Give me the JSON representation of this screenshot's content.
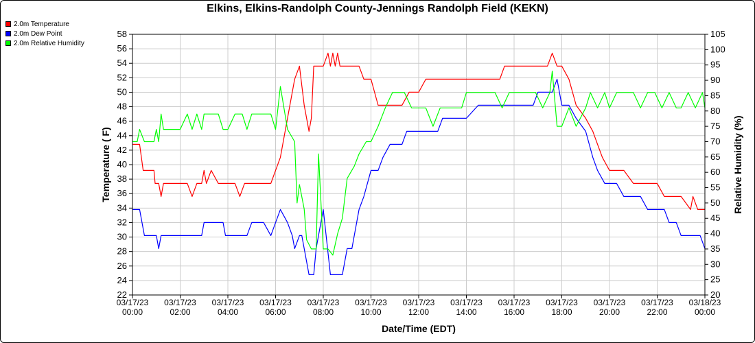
{
  "chart_data": {
    "type": "line",
    "title": "Elkins, Elkins-Randolph County-Jennings Randolph Field (KEKN)",
    "xlabel": "Date/Time (EDT)",
    "ylabel_left": "Temperature ( F)",
    "ylabel_right": "Relative Humidity (%)",
    "ylim_left": [
      22,
      58
    ],
    "ylim_right": [
      20,
      105
    ],
    "xlim_hours": [
      0,
      24
    ],
    "grid": true,
    "legend_position": "top-left",
    "yticks_left": [
      22,
      24,
      26,
      28,
      30,
      32,
      34,
      36,
      38,
      40,
      42,
      44,
      46,
      48,
      50,
      52,
      54,
      56,
      58
    ],
    "yticks_right": [
      20,
      25,
      30,
      35,
      40,
      45,
      50,
      55,
      60,
      65,
      70,
      75,
      80,
      85,
      90,
      95,
      100,
      105
    ],
    "xticks": [
      {
        "date": "03/17/23",
        "time": "00:00"
      },
      {
        "date": "03/17/23",
        "time": "02:00"
      },
      {
        "date": "03/17/23",
        "time": "04:00"
      },
      {
        "date": "03/17/23",
        "time": "06:00"
      },
      {
        "date": "03/17/23",
        "time": "08:00"
      },
      {
        "date": "03/17/23",
        "time": "10:00"
      },
      {
        "date": "03/17/23",
        "time": "12:00"
      },
      {
        "date": "03/17/23",
        "time": "14:00"
      },
      {
        "date": "03/17/23",
        "time": "16:00"
      },
      {
        "date": "03/17/23",
        "time": "18:00"
      },
      {
        "date": "03/17/23",
        "time": "20:00"
      },
      {
        "date": "03/17/23",
        "time": "22:00"
      },
      {
        "date": "03/18/23",
        "time": "00:00"
      }
    ],
    "series": [
      {
        "name": "2.0m Temperature",
        "color": "#ff0000",
        "axis": "left",
        "hours": [
          0,
          0.3,
          0.45,
          0.9,
          0.95,
          1.1,
          1.2,
          1.3,
          1.5,
          1.6,
          1.8,
          2.0,
          2.2,
          2.3,
          2.5,
          2.7,
          2.8,
          2.9,
          3.0,
          3.1,
          3.3,
          3.6,
          3.7,
          4.0,
          4.3,
          4.5,
          4.7,
          4.8,
          5.0,
          5.2,
          5.5,
          5.8,
          6.0,
          6.2,
          6.4,
          6.5,
          6.8,
          7.0,
          7.2,
          7.4,
          7.5,
          7.6,
          7.7,
          8.0,
          8.2,
          8.3,
          8.4,
          8.5,
          8.6,
          8.7,
          9.0,
          9.3,
          9.5,
          9.7,
          10.0,
          10.3,
          10.5,
          10.8,
          11.0,
          11.3,
          11.6,
          12.0,
          12.3,
          12.6,
          13.0,
          13.5,
          14.0,
          14.5,
          15.0,
          15.4,
          15.6,
          15.8,
          16.0,
          16.4,
          16.6,
          16.8,
          17.0,
          17.2,
          17.4,
          17.6,
          17.8,
          18.0,
          18.3,
          18.6,
          19.0,
          19.3,
          19.5,
          19.7,
          20.0,
          20.3,
          20.6,
          21.0,
          21.5,
          22.0,
          22.3,
          22.6,
          22.8,
          23.0,
          23.4,
          23.5,
          23.7,
          24.0
        ],
        "values": [
          42.8,
          42.8,
          39.2,
          39.2,
          37.4,
          37.4,
          35.6,
          37.4,
          37.4,
          37.4,
          37.4,
          37.4,
          37.4,
          37.4,
          35.6,
          37.4,
          37.4,
          37.4,
          39.2,
          37.4,
          39.2,
          37.4,
          37.4,
          37.4,
          37.4,
          35.6,
          37.4,
          37.4,
          37.4,
          37.4,
          37.4,
          37.4,
          39.2,
          41.0,
          44.6,
          46.4,
          51.8,
          53.6,
          48.2,
          44.6,
          46.4,
          53.6,
          53.6,
          53.6,
          55.4,
          53.6,
          55.4,
          53.6,
          55.4,
          53.6,
          53.6,
          53.6,
          53.6,
          51.8,
          51.8,
          48.2,
          48.2,
          48.2,
          48.2,
          48.2,
          50.0,
          50.0,
          51.8,
          51.8,
          51.8,
          51.8,
          51.8,
          51.8,
          51.8,
          51.8,
          53.6,
          53.6,
          53.6,
          53.6,
          53.6,
          53.6,
          53.6,
          53.6,
          53.6,
          55.4,
          53.6,
          53.6,
          51.8,
          48.2,
          46.4,
          44.6,
          42.8,
          41.0,
          39.2,
          39.2,
          39.2,
          37.4,
          37.4,
          37.4,
          35.6,
          35.6,
          35.6,
          35.6,
          33.8,
          35.6,
          33.8,
          33.8
        ]
      },
      {
        "name": "2.0m Dew Point",
        "color": "#0000ff",
        "axis": "left",
        "hours": [
          0,
          0.3,
          0.5,
          0.9,
          1.0,
          1.1,
          1.2,
          1.3,
          1.5,
          1.8,
          2.0,
          2.3,
          2.7,
          2.9,
          3.0,
          3.3,
          3.6,
          3.8,
          3.9,
          4.0,
          4.3,
          4.6,
          4.8,
          5.0,
          5.2,
          5.5,
          5.8,
          6.0,
          6.2,
          6.5,
          6.7,
          6.8,
          7.0,
          7.1,
          7.3,
          7.4,
          7.5,
          7.6,
          7.7,
          8.0,
          8.3,
          8.5,
          8.8,
          9.0,
          9.2,
          9.5,
          9.7,
          10.0,
          10.3,
          10.5,
          10.8,
          11.0,
          11.3,
          11.5,
          11.8,
          12.0,
          12.5,
          12.8,
          13.0,
          13.5,
          14.0,
          14.5,
          15.0,
          15.5,
          16.0,
          16.3,
          16.6,
          16.8,
          17.0,
          17.3,
          17.5,
          17.6,
          17.8,
          18.0,
          18.3,
          18.6,
          19.0,
          19.3,
          19.5,
          19.8,
          20.0,
          20.3,
          20.6,
          21.0,
          21.3,
          21.6,
          22.0,
          22.3,
          22.5,
          22.8,
          23.0,
          23.3,
          23.6,
          23.8,
          24.0
        ],
        "values": [
          33.8,
          33.8,
          30.2,
          30.2,
          30.2,
          28.4,
          30.2,
          30.2,
          30.2,
          30.2,
          30.2,
          30.2,
          30.2,
          30.2,
          32.0,
          32.0,
          32.0,
          32.0,
          30.2,
          30.2,
          30.2,
          30.2,
          30.2,
          32.0,
          32.0,
          32.0,
          30.2,
          32.0,
          33.8,
          32.0,
          30.2,
          28.4,
          30.2,
          30.2,
          26.6,
          24.8,
          24.8,
          24.8,
          28.4,
          33.8,
          24.8,
          24.8,
          24.8,
          28.4,
          28.4,
          33.8,
          35.6,
          39.2,
          39.2,
          41.0,
          42.8,
          42.8,
          42.8,
          44.6,
          44.6,
          44.6,
          44.6,
          44.6,
          46.4,
          46.4,
          46.4,
          48.2,
          48.2,
          48.2,
          48.2,
          48.2,
          48.2,
          48.2,
          50.0,
          50.0,
          50.0,
          50.0,
          51.8,
          48.2,
          48.2,
          46.4,
          44.6,
          41.0,
          39.2,
          37.4,
          37.4,
          37.4,
          35.6,
          35.6,
          35.6,
          33.8,
          33.8,
          33.8,
          32.0,
          32.0,
          30.2,
          30.2,
          30.2,
          30.2,
          28.4
        ]
      },
      {
        "name": "2.0m Relative Humidity",
        "color": "#00ff00",
        "axis": "right",
        "hours": [
          0,
          0.2,
          0.3,
          0.5,
          0.9,
          1.0,
          1.1,
          1.2,
          1.3,
          1.6,
          1.8,
          2.0,
          2.3,
          2.5,
          2.7,
          2.9,
          3.0,
          3.3,
          3.6,
          3.8,
          4.0,
          4.3,
          4.6,
          4.8,
          5.0,
          5.3,
          5.6,
          5.8,
          6.0,
          6.2,
          6.5,
          6.8,
          6.9,
          7.0,
          7.2,
          7.3,
          7.5,
          7.7,
          7.8,
          8.0,
          8.2,
          8.4,
          8.6,
          8.8,
          9.0,
          9.3,
          9.5,
          9.8,
          10.0,
          10.3,
          10.6,
          10.9,
          11.1,
          11.4,
          11.7,
          12.0,
          12.3,
          12.6,
          12.9,
          13.2,
          13.5,
          13.8,
          14.0,
          14.3,
          14.6,
          14.9,
          15.2,
          15.5,
          15.8,
          16.0,
          16.3,
          16.6,
          16.9,
          17.2,
          17.5,
          17.6,
          17.8,
          18.0,
          18.3,
          18.6,
          19.0,
          19.2,
          19.5,
          19.8,
          20.0,
          20.3,
          20.6,
          21.0,
          21.3,
          21.6,
          21.9,
          22.2,
          22.5,
          22.8,
          23.0,
          23.3,
          23.6,
          23.9,
          24.0
        ],
        "values": [
          70,
          70,
          74,
          70,
          70,
          74,
          70,
          79,
          74,
          74,
          74,
          74,
          79,
          74,
          79,
          74,
          79,
          79,
          79,
          74,
          74,
          79,
          79,
          74,
          79,
          79,
          79,
          79,
          74,
          88,
          74,
          70,
          50,
          56,
          48,
          38,
          35,
          35,
          66,
          35,
          35,
          33,
          40,
          45,
          58,
          62,
          66,
          70,
          70,
          75,
          81,
          86,
          86,
          86,
          81,
          81,
          81,
          75,
          81,
          81,
          81,
          81,
          86,
          86,
          86,
          86,
          86,
          81,
          86,
          86,
          86,
          86,
          86,
          81,
          86,
          93,
          75,
          75,
          81,
          75,
          81,
          86,
          81,
          86,
          81,
          86,
          86,
          86,
          81,
          86,
          86,
          81,
          86,
          81,
          81,
          86,
          81,
          86,
          81
        ]
      }
    ]
  }
}
